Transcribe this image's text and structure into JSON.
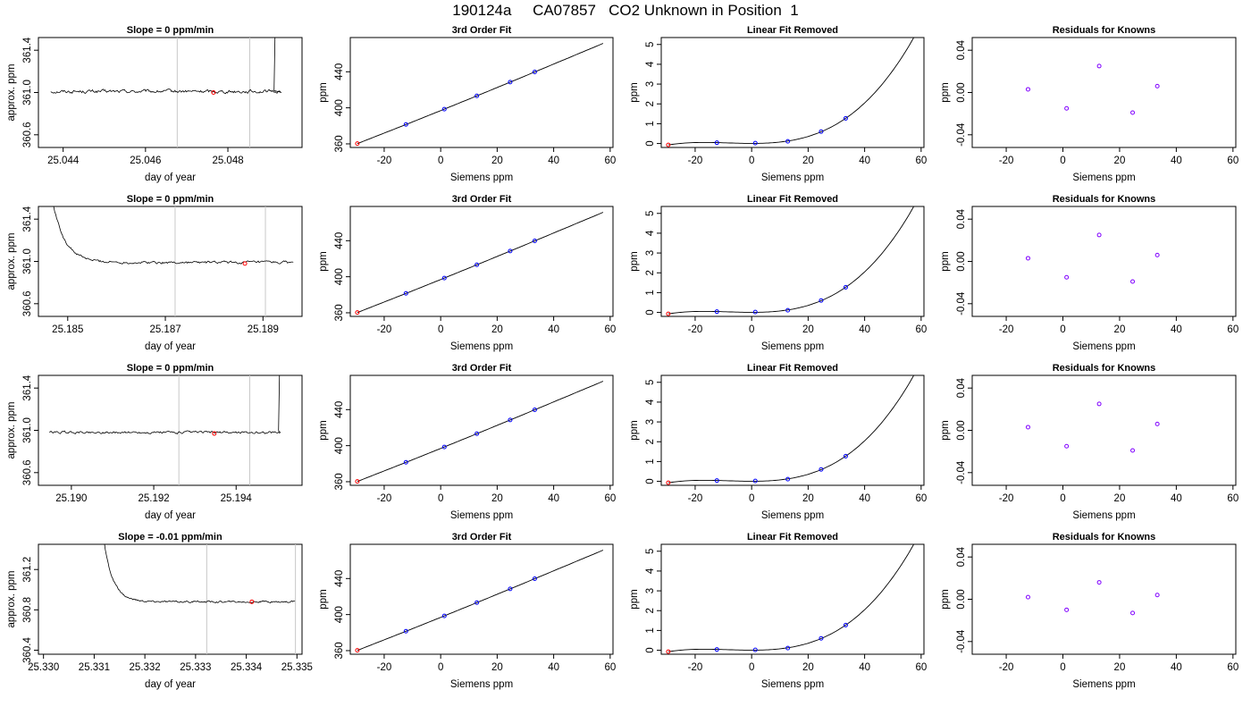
{
  "figure_title": "190124a     CA07857   CO2 Unknown in Position  1",
  "labels": {
    "approx_ppm": "approx. ppm",
    "day_of_year": "day of year",
    "siemens_ppm": "Siemens ppm",
    "ppm": "ppm",
    "fit_title": "3rd Order Fit",
    "linear_removed_title": "Linear Fit Removed",
    "residuals_title": "Residuals for Knowns"
  },
  "colors": {
    "line": "#000000",
    "known_point": "#0000ff",
    "residual_point": "#8000ff",
    "unknown_point": "#ff0000",
    "window_line": "#c8c8c8",
    "box": "#000000"
  },
  "chart_data": [
    {
      "type": "line",
      "panel": "time-series",
      "row": 1,
      "title": "Slope =  0  ppm/min",
      "xlabel": "day of year",
      "ylabel": "approx. ppm",
      "xlim": [
        25.0434,
        25.0498
      ],
      "ylim": [
        360.48,
        361.52
      ],
      "xticks": [
        25.044,
        25.046,
        25.048
      ],
      "xtick_labels": [
        "25.044",
        "25.046",
        "25.048"
      ],
      "yticks": [
        360.6,
        361.0,
        361.4
      ],
      "ytick_labels": [
        "360.6",
        "361.0",
        "361.4"
      ],
      "start": 25.0437,
      "end": 25.0493,
      "level": 361.01,
      "noise": 0.012,
      "spike": {
        "at": 25.04912,
        "to": 362.0
      },
      "window": [
        25.04677,
        25.04853
      ],
      "unknown_point": {
        "x": 25.04765,
        "y": 361.0
      }
    },
    {
      "type": "line",
      "panel": "time-series",
      "row": 2,
      "title": "Slope =  0  ppm/min",
      "xlabel": "day of year",
      "ylabel": "approx. ppm",
      "xlim": [
        25.1844,
        25.1898
      ],
      "ylim": [
        360.48,
        361.52
      ],
      "xticks": [
        25.185,
        25.187,
        25.189
      ],
      "xtick_labels": [
        "25.185",
        "25.187",
        "25.189"
      ],
      "yticks": [
        360.6,
        361.0,
        361.4
      ],
      "ytick_labels": [
        "360.6",
        "361.0",
        "361.4"
      ],
      "start": 25.18458,
      "end": 25.18962,
      "level": 360.99,
      "noise": 0.01,
      "decay": {
        "from": 361.9,
        "tau": 0.00025
      },
      "window": [
        25.1872,
        25.18905
      ],
      "unknown_point": {
        "x": 25.18863,
        "y": 360.98
      }
    },
    {
      "type": "line",
      "panel": "time-series",
      "row": 3,
      "title": "Slope =  0  ppm/min",
      "xlabel": "day of year",
      "ylabel": "approx. ppm",
      "xlim": [
        25.1892,
        25.1956
      ],
      "ylim": [
        360.48,
        361.52
      ],
      "xticks": [
        25.19,
        25.192,
        25.194
      ],
      "xtick_labels": [
        "25.190",
        "25.192",
        "25.194"
      ],
      "yticks": [
        360.6,
        361.0,
        361.4
      ],
      "ytick_labels": [
        "360.6",
        "361.0",
        "361.4"
      ],
      "start": 25.18947,
      "end": 25.19507,
      "level": 360.98,
      "noise": 0.009,
      "spike": {
        "at": 25.19503,
        "to": 362.0
      },
      "window": [
        25.19261,
        25.19433
      ],
      "unknown_point": {
        "x": 25.19347,
        "y": 360.97
      }
    },
    {
      "type": "line",
      "panel": "time-series",
      "row": 4,
      "title": "Slope =  -0.01  ppm/min",
      "xlabel": "day of year",
      "ylabel": "approx. ppm",
      "xlim": [
        25.3299,
        25.3351
      ],
      "ylim": [
        360.36,
        361.45
      ],
      "xticks": [
        25.33,
        25.331,
        25.332,
        25.333,
        25.334,
        25.335
      ],
      "xtick_labels": [
        "25.330",
        "25.331",
        "25.332",
        "25.333",
        "25.334",
        "25.335"
      ],
      "yticks": [
        360.4,
        360.8,
        361.2
      ],
      "ytick_labels": [
        "360.4",
        "360.8",
        "361.2"
      ],
      "start": 25.33116,
      "end": 25.33496,
      "level": 360.88,
      "noise": 0.007,
      "decay": {
        "from": 361.6,
        "tau": 0.00018
      },
      "window": [
        25.33322,
        25.33497
      ],
      "unknown_point": {
        "x": 25.33411,
        "y": 360.88
      }
    },
    {
      "type": "scatter",
      "panel": "fit",
      "title": "3rd Order Fit",
      "xlabel": "Siemens ppm",
      "ylabel": "ppm",
      "xlim": [
        -32,
        61
      ],
      "ylim": [
        356,
        478
      ],
      "xticks": [
        -20,
        0,
        20,
        40,
        60
      ],
      "xtick_labels": [
        "-20",
        "0",
        "20",
        "40",
        "60"
      ],
      "yticks": [
        360,
        400,
        440
      ],
      "ytick_labels": [
        "360",
        "400",
        "440"
      ],
      "curve_x": [
        -29.5,
        57.5
      ],
      "known_points": {
        "x": [
          -12.3,
          1.3,
          12.8,
          24.6,
          33.3
        ],
        "y": [
          381.5,
          398.5,
          413.3,
          428.5,
          439.8
        ]
      },
      "unknown_point": {
        "x": -29.5,
        "y": 360.3
      }
    },
    {
      "type": "scatter",
      "panel": "linear-removed",
      "title": "Linear Fit Removed",
      "xlabel": "Siemens ppm",
      "ylabel": "ppm",
      "xlim": [
        -32,
        61
      ],
      "ylim": [
        -0.2,
        5.35
      ],
      "xticks": [
        -20,
        0,
        20,
        40,
        60
      ],
      "xtick_labels": [
        "-20",
        "0",
        "20",
        "40",
        "60"
      ],
      "yticks": [
        0,
        1,
        2,
        3,
        4,
        5
      ],
      "ytick_labels": [
        "0",
        "1",
        "2",
        "3",
        "4",
        "5"
      ],
      "curve_x": [
        -29.5,
        57.5
      ],
      "known_points": {
        "x": [
          -12.3,
          1.3,
          12.8,
          24.6,
          33.3
        ],
        "y": [
          0.04,
          0.02,
          0.11,
          0.6,
          1.27
        ]
      },
      "unknown_point": {
        "x": -29.5,
        "y": -0.07
      }
    },
    {
      "type": "scatter",
      "panel": "residuals",
      "title": "Residuals for Knowns",
      "xlabel": "Siemens ppm",
      "ylabel": "ppm",
      "xlim": [
        -32,
        61
      ],
      "ylim": [
        -0.052,
        0.052
      ],
      "xticks": [
        -20,
        0,
        20,
        40,
        60
      ],
      "xtick_labels": [
        "-20",
        "0",
        "20",
        "40",
        "60"
      ],
      "yticks": [
        -0.04,
        0.0,
        0.04
      ],
      "ytick_labels": [
        "-0.04",
        "0.00",
        "0.04"
      ],
      "rows": [
        {
          "x": [
            -12.3,
            1.3,
            12.8,
            24.6,
            33.3
          ],
          "y": [
            0.003,
            -0.015,
            0.025,
            -0.019,
            0.006
          ]
        },
        {
          "x": [
            -12.3,
            1.3,
            12.8,
            24.6,
            33.3
          ],
          "y": [
            0.003,
            -0.015,
            0.025,
            -0.019,
            0.006
          ]
        },
        {
          "x": [
            -12.3,
            1.3,
            12.8,
            24.6,
            33.3
          ],
          "y": [
            0.003,
            -0.015,
            0.025,
            -0.019,
            0.006
          ]
        },
        {
          "x": [
            -12.3,
            1.3,
            12.8,
            24.6,
            33.3
          ],
          "y": [
            0.002,
            -0.01,
            0.016,
            -0.013,
            0.004
          ]
        }
      ]
    }
  ]
}
